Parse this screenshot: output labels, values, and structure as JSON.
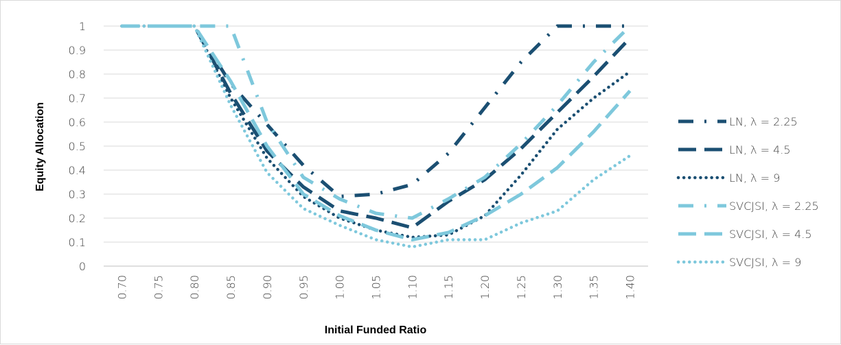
{
  "chart_data": {
    "type": "line",
    "title": "",
    "xlabel": "Initial Funded Ratio",
    "ylabel": "Equity Allocation",
    "ylim": [
      0,
      1
    ],
    "y_ticks": [
      "0",
      "0.1",
      "0.2",
      "0.3",
      "0.4",
      "0.5",
      "0.6",
      "0.7",
      "0.8",
      "0.9",
      "1"
    ],
    "categories": [
      "0.70",
      "0.75",
      "0.80",
      "0.85",
      "0.90",
      "0.95",
      "1.00",
      "1.05",
      "1.10",
      "1.15",
      "1.20",
      "1.25",
      "1.30",
      "1.35",
      "1.40"
    ],
    "grid": "horizontal",
    "legend_position": "right",
    "series": [
      {
        "name": "LN, λ = 2.25",
        "color": "#1b4f72",
        "dash": "dash-dot",
        "values": [
          1,
          1,
          1,
          0.76,
          0.59,
          0.42,
          0.29,
          0.3,
          0.34,
          0.47,
          0.66,
          0.85,
          1.0,
          1.0,
          1.0
        ]
      },
      {
        "name": "LN, λ = 4.5",
        "color": "#1b4f72",
        "dash": "long-dash",
        "values": [
          1,
          1,
          1,
          0.72,
          0.48,
          0.33,
          0.23,
          0.2,
          0.16,
          0.27,
          0.36,
          0.49,
          0.64,
          0.79,
          0.95
        ]
      },
      {
        "name": "LN, λ = 9",
        "color": "#1b4f72",
        "dash": "dot",
        "values": [
          1,
          1,
          1,
          0.7,
          0.45,
          0.29,
          0.2,
          0.15,
          0.12,
          0.13,
          0.21,
          0.38,
          0.57,
          0.7,
          0.81
        ]
      },
      {
        "name": "SVCJSI, λ = 2.25",
        "color": "#7ec8dc",
        "dash": "dash-dot",
        "values": [
          1,
          1,
          1,
          1,
          0.6,
          0.37,
          0.28,
          0.22,
          0.2,
          0.28,
          0.37,
          0.51,
          0.67,
          0.85,
          1.0
        ]
      },
      {
        "name": "SVCJSI, λ = 4.5",
        "color": "#7ec8dc",
        "dash": "long-dash",
        "values": [
          1,
          1,
          1,
          0.77,
          0.5,
          0.3,
          0.21,
          0.15,
          0.11,
          0.14,
          0.21,
          0.3,
          0.41,
          0.56,
          0.73
        ]
      },
      {
        "name": "SVCJSI, λ = 9",
        "color": "#7ec8dc",
        "dash": "dot",
        "values": [
          1,
          1,
          1,
          0.67,
          0.39,
          0.24,
          0.17,
          0.11,
          0.08,
          0.11,
          0.11,
          0.18,
          0.23,
          0.36,
          0.46
        ]
      }
    ]
  }
}
